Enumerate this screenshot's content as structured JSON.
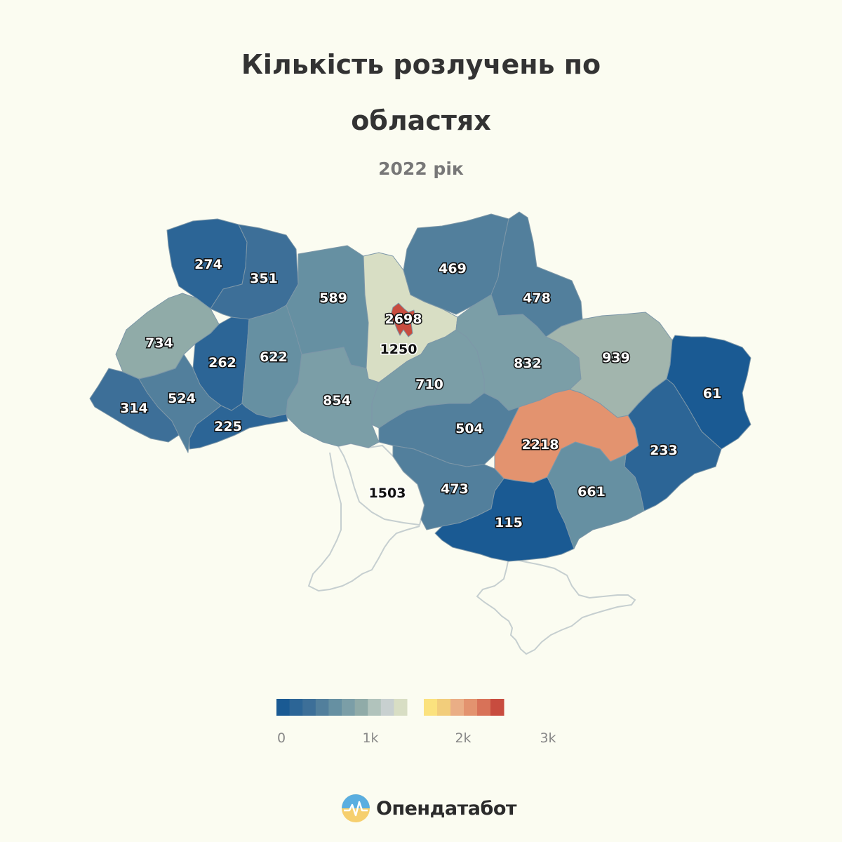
{
  "title_line1": "Кількість розлучень по",
  "title_line2": "областях",
  "subtitle": "2022 рік",
  "regions": [
    {
      "name": "Volyn",
      "value": "274"
    },
    {
      "name": "Rivne",
      "value": "351"
    },
    {
      "name": "Zhytomyr",
      "value": "589"
    },
    {
      "name": "Kyiv Oblast",
      "value": "1250"
    },
    {
      "name": "Kyiv City",
      "value": "2698"
    },
    {
      "name": "Chernihiv",
      "value": "469"
    },
    {
      "name": "Sumy",
      "value": "478"
    },
    {
      "name": "Lviv",
      "value": "734"
    },
    {
      "name": "Ternopil",
      "value": "262"
    },
    {
      "name": "Khmelnytskyi",
      "value": "622"
    },
    {
      "name": "Vinnytsia",
      "value": "854"
    },
    {
      "name": "Cherkasy",
      "value": "710"
    },
    {
      "name": "Poltava",
      "value": "832"
    },
    {
      "name": "Kharkiv",
      "value": "939"
    },
    {
      "name": "Luhansk",
      "value": "61"
    },
    {
      "name": "Zakarpattia",
      "value": "314"
    },
    {
      "name": "Ivano-Frankivsk",
      "value": "524"
    },
    {
      "name": "Chernivtsi",
      "value": "225"
    },
    {
      "name": "Kirovohrad",
      "value": "504"
    },
    {
      "name": "Dnipropetrovsk",
      "value": "2218"
    },
    {
      "name": "Donetsk",
      "value": "233"
    },
    {
      "name": "Odesa",
      "value": "1503"
    },
    {
      "name": "Mykolaiv",
      "value": "473"
    },
    {
      "name": "Kherson",
      "value": "115"
    },
    {
      "name": "Zaporizhzhia",
      "value": "661"
    }
  ],
  "legend": {
    "ticks": [
      "0",
      "1k",
      "2k",
      "3k"
    ],
    "colors": [
      "#1a5a93",
      "#2c6596",
      "#3d6f98",
      "#527f9c",
      "#6690a2",
      "#7b9ea7",
      "#90aba8",
      "#b1c3bc",
      "#c8d0d0",
      "#d8dec4",
      "#fbe27e",
      "#f2cd7b",
      "#eaae86",
      "#e3936f",
      "#d87258",
      "#c84c3f"
    ]
  },
  "brand": {
    "name": "Опендатабот"
  }
}
